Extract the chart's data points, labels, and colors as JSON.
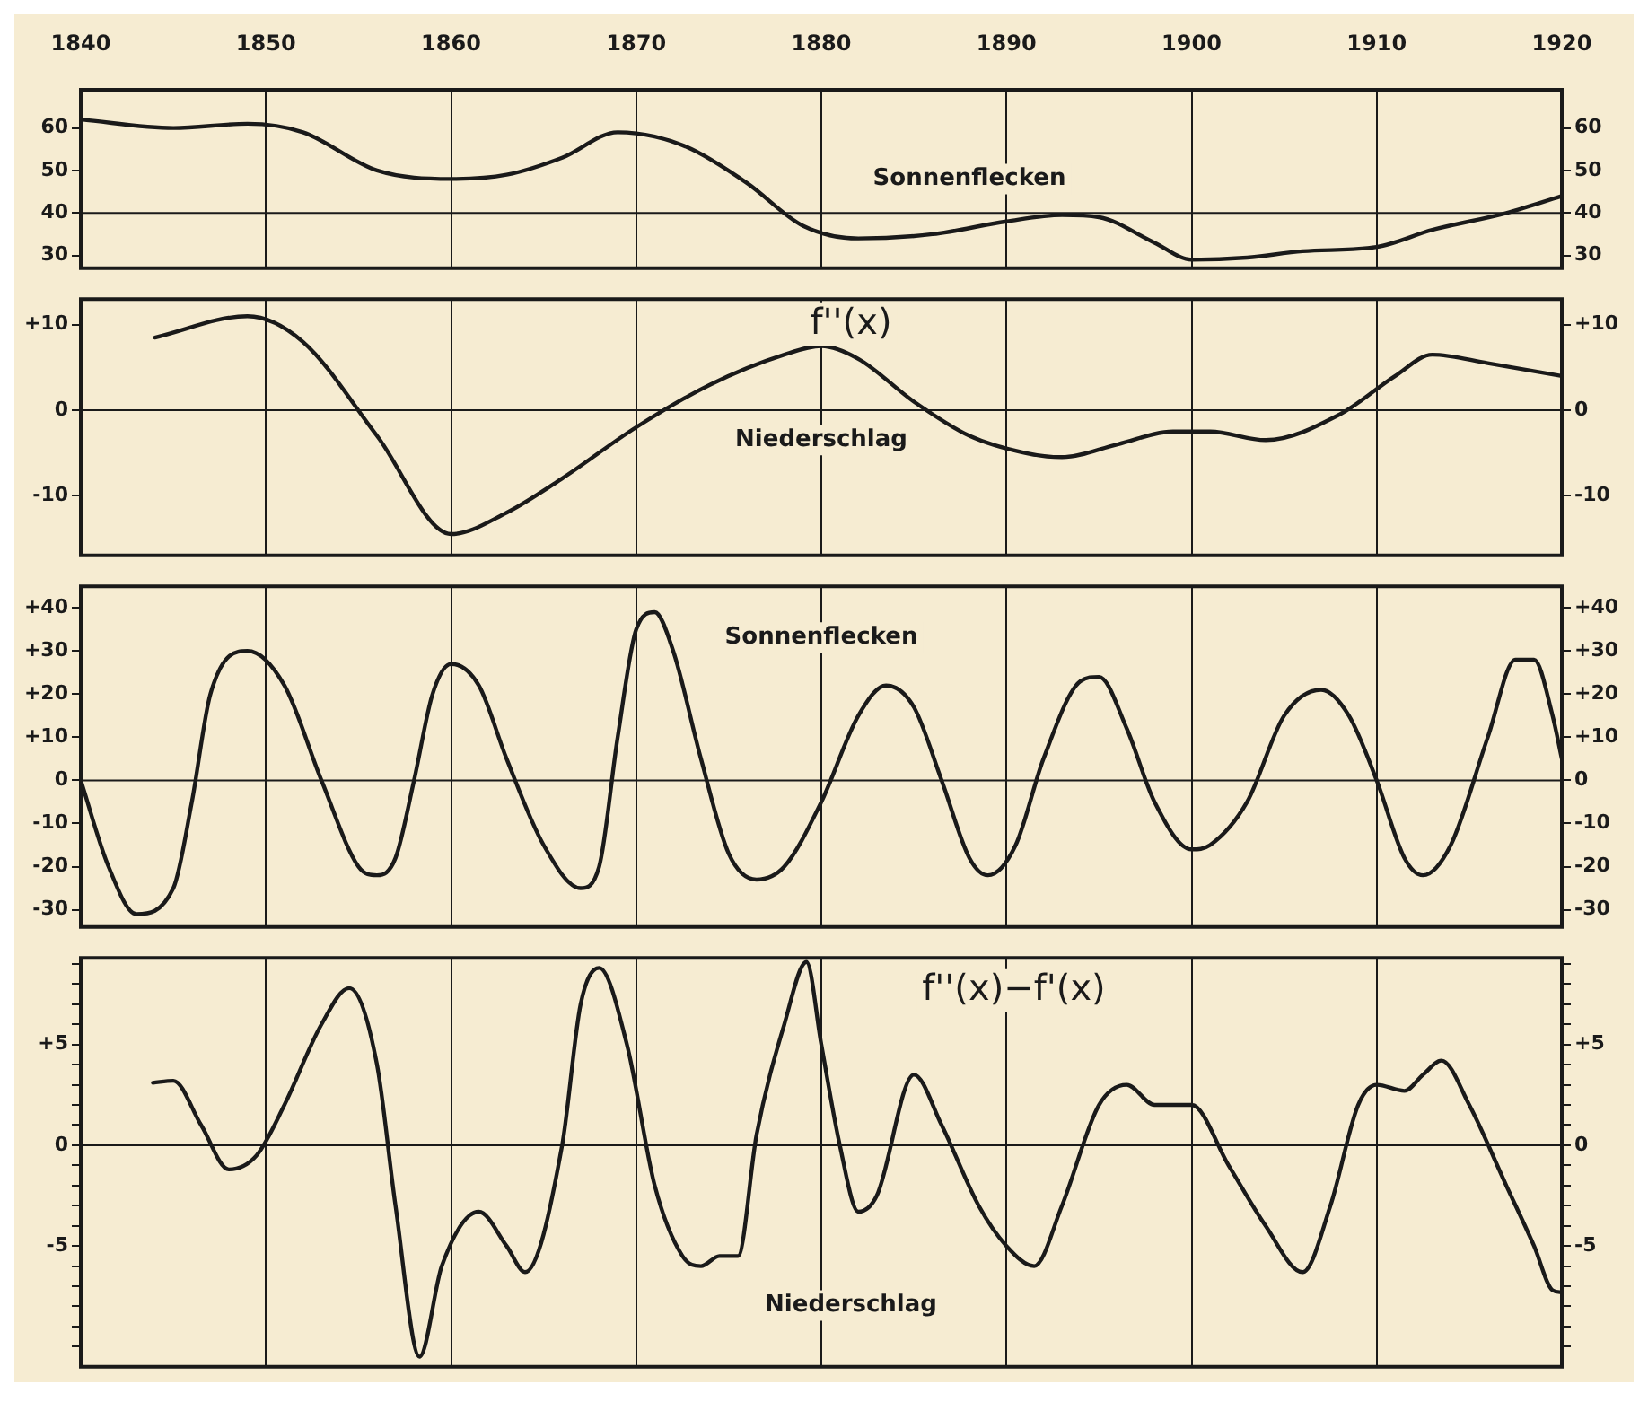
{
  "chart_data": [
    {
      "type": "line",
      "xlim": [
        1840,
        1920
      ],
      "xticks": [
        1840,
        1850,
        1860,
        1870,
        1880,
        1890,
        1900,
        1910,
        1920
      ],
      "ylim": [
        27,
        69
      ],
      "yticks": [
        30,
        40,
        50,
        60
      ],
      "y2lim": [
        27,
        69
      ],
      "y2ticks": [
        30,
        40,
        50,
        60
      ],
      "grid": "x",
      "legend": false,
      "marker": "none",
      "line_style": "solid",
      "ref_lines": [
        {
          "axis": "y",
          "value": 40
        }
      ],
      "series": [
        {
          "color": "#1a1a1a",
          "x": [
            1840,
            1845,
            1849,
            1852,
            1856,
            1860,
            1863,
            1866,
            1869,
            1871,
            1873,
            1876,
            1879,
            1882,
            1886,
            1890,
            1893,
            1895,
            1898,
            1900,
            1903,
            1906,
            1910,
            1913,
            1917,
            1920
          ],
          "values": [
            62,
            60,
            61,
            59,
            50,
            48,
            49,
            53,
            59,
            58,
            55,
            47,
            37,
            34,
            35,
            38,
            39.5,
            39,
            33,
            29,
            29.5,
            31,
            32,
            36,
            40,
            44
          ]
        }
      ],
      "annotations": [
        "Sonnenflecken"
      ]
    },
    {
      "type": "line",
      "xlim": [
        1840,
        1920
      ],
      "xticks": [
        1840,
        1850,
        1860,
        1870,
        1880,
        1890,
        1900,
        1910,
        1920
      ],
      "ylim": [
        -17,
        13
      ],
      "yticks": [
        {
          "value": 10,
          "label": "+10"
        },
        0,
        -10
      ],
      "y2lim": [
        -17,
        13
      ],
      "y2ticks": [
        {
          "value": 10,
          "label": "+10"
        },
        0,
        -10
      ],
      "grid": "x",
      "legend": false,
      "marker": "none",
      "line_style": "solid",
      "tick_labels": "y",
      "ref_lines": [
        {
          "axis": "y",
          "value": 0
        }
      ],
      "series": [
        {
          "color": "#1a1a1a",
          "x": [
            1844,
            1849,
            1852,
            1856,
            1860,
            1863,
            1866,
            1870,
            1874,
            1878,
            1880,
            1882,
            1885,
            1888,
            1891,
            1893,
            1896,
            1899,
            1901,
            1904,
            1908,
            1911,
            1913,
            1916,
            1920
          ],
          "values": [
            8.5,
            11,
            8,
            -3,
            -14.5,
            -12,
            -8,
            -2,
            3,
            6.5,
            7.5,
            6,
            1,
            -3,
            -5,
            -5.5,
            -4,
            -2.5,
            -2.5,
            -3.5,
            -0.5,
            4,
            6.5,
            5.5,
            4
          ]
        }
      ],
      "annotations": [
        "f''(x)",
        "Niederschlag"
      ]
    },
    {
      "type": "line",
      "xlim": [
        1840,
        1920
      ],
      "xticks": [
        1840,
        1850,
        1860,
        1870,
        1880,
        1890,
        1900,
        1910,
        1920
      ],
      "ylim": [
        -34,
        45
      ],
      "yticks": [
        {
          "value": 40,
          "label": "+40"
        },
        {
          "value": 30,
          "label": "+30"
        },
        {
          "value": 20,
          "label": "+20"
        },
        {
          "value": 10,
          "label": "+10"
        },
        0,
        -10,
        -20,
        -30
      ],
      "y2lim": [
        -34,
        45
      ],
      "y2ticks": [
        {
          "value": 40,
          "label": "+40"
        },
        {
          "value": 30,
          "label": "+30"
        },
        {
          "value": 20,
          "label": "+20"
        },
        {
          "value": 10,
          "label": "+10"
        },
        0,
        -10,
        -20,
        -30
      ],
      "grid": "x",
      "legend": false,
      "marker": "none",
      "line_style": "solid",
      "tick_labels": "y",
      "ref_lines": [
        {
          "axis": "y",
          "value": 0
        }
      ],
      "series": [
        {
          "color": "#1a1a1a",
          "x": [
            1840,
            1841.5,
            1843,
            1845,
            1846,
            1847,
            1849,
            1851,
            1853,
            1855,
            1856,
            1857,
            1858,
            1859,
            1860,
            1861.5,
            1863,
            1865,
            1867,
            1868,
            1869,
            1870,
            1871,
            1872,
            1873.5,
            1875,
            1876.5,
            1878,
            1880,
            1882,
            1883.5,
            1885,
            1886.5,
            1888,
            1889,
            1890.5,
            1892,
            1894,
            1895,
            1896.5,
            1898,
            1900,
            1901,
            1903,
            1905,
            1907,
            1908.5,
            1910,
            1911.5,
            1912.5,
            1914,
            1916,
            1917.5,
            1918.5,
            1919.5,
            1920
          ],
          "values": [
            0,
            -20,
            -31,
            -25,
            -5,
            20,
            30,
            22,
            0,
            -20,
            -22,
            -18,
            0,
            20,
            27,
            22,
            5,
            -15,
            -25,
            -20,
            10,
            35,
            39,
            30,
            5,
            -17,
            -23,
            -20,
            -5,
            15,
            22,
            17,
            0,
            -18,
            -22,
            -15,
            5,
            23,
            24,
            12,
            -5,
            -16,
            -15,
            -5,
            15,
            21,
            15,
            0,
            -18,
            -22,
            -15,
            10,
            28,
            28,
            15,
            5
          ]
        }
      ],
      "annotations": [
        "Sonnenflecken"
      ]
    },
    {
      "type": "line",
      "xlim": [
        1840,
        1920
      ],
      "xticks": [
        1840,
        1850,
        1860,
        1870,
        1880,
        1890,
        1900,
        1910,
        1920
      ],
      "ylim": [
        -11,
        9.3
      ],
      "yticks": [
        {
          "value": -10,
          "label": null
        },
        {
          "value": -9,
          "label": null
        },
        {
          "value": -8,
          "label": null
        },
        {
          "value": -7,
          "label": null
        },
        {
          "value": -6,
          "label": null
        },
        -5,
        {
          "value": -4,
          "label": null
        },
        {
          "value": -3,
          "label": null
        },
        {
          "value": -2,
          "label": null
        },
        {
          "value": -1,
          "label": null
        },
        0,
        {
          "value": 1,
          "label": null
        },
        {
          "value": 2,
          "label": null
        },
        {
          "value": 3,
          "label": null
        },
        {
          "value": 4,
          "label": null
        },
        {
          "value": 5,
          "label": "+5"
        },
        {
          "value": 6,
          "label": null
        },
        {
          "value": 7,
          "label": null
        },
        {
          "value": 8,
          "label": null
        },
        {
          "value": 9,
          "label": null
        }
      ],
      "y2lim": [
        -11,
        9.3
      ],
      "y2ticks": [
        {
          "value": -10,
          "label": null
        },
        {
          "value": -9,
          "label": null
        },
        {
          "value": -8,
          "label": null
        },
        {
          "value": -7,
          "label": null
        },
        {
          "value": -6,
          "label": null
        },
        -5,
        {
          "value": -4,
          "label": null
        },
        {
          "value": -3,
          "label": null
        },
        {
          "value": -2,
          "label": null
        },
        {
          "value": -1,
          "label": null
        },
        0,
        {
          "value": 1,
          "label": null
        },
        {
          "value": 2,
          "label": null
        },
        {
          "value": 3,
          "label": null
        },
        {
          "value": 4,
          "label": null
        },
        {
          "value": 5,
          "label": "+5"
        },
        {
          "value": 6,
          "label": null
        },
        {
          "value": 7,
          "label": null
        },
        {
          "value": 8,
          "label": null
        },
        {
          "value": 9,
          "label": null
        }
      ],
      "grid": "x",
      "legend": false,
      "marker": "none",
      "line_style": "solid",
      "tick_labels": "y",
      "ref_lines": [
        {
          "axis": "y",
          "value": 0
        }
      ],
      "series": [
        {
          "color": "#1a1a1a",
          "x": [
            1843.9,
            1845,
            1846.5,
            1848,
            1849.5,
            1851,
            1853,
            1854.5,
            1856,
            1857,
            1858.3,
            1859.5,
            1861.5,
            1863,
            1864,
            1866,
            1867,
            1868,
            1869.5,
            1871,
            1872.5,
            1873.5,
            1874.5,
            1875.5,
            1876.5,
            1878,
            1879.2,
            1880,
            1881,
            1882,
            1883,
            1885,
            1886.5,
            1888.5,
            1890,
            1891.5,
            1893,
            1895,
            1896.5,
            1898,
            1900,
            1902,
            1904,
            1906,
            1907.5,
            1909,
            1910,
            1911.5,
            1912.5,
            1913.5,
            1915,
            1917,
            1918.5,
            1919.5,
            1920
          ],
          "values": [
            3.1,
            3.2,
            1,
            -1.2,
            -0.5,
            2,
            6,
            7.8,
            4,
            -3,
            -10.5,
            -6,
            -3.3,
            -5,
            -6.3,
            0,
            7,
            8.8,
            5,
            -2,
            -5.5,
            -6,
            -5.5,
            -5.5,
            0.5,
            6,
            9.1,
            5,
            0,
            -3.3,
            -2.5,
            3.5,
            1,
            -3,
            -5,
            -6,
            -3,
            2,
            3,
            2,
            2,
            -1,
            -4,
            -6.3,
            -3,
            2,
            3,
            2.7,
            3.5,
            4.2,
            2,
            -2,
            -5,
            -7.2,
            -7.3
          ]
        }
      ],
      "annotations": [
        "f''(x)−f'(x)",
        "Niederschlag"
      ]
    }
  ]
}
